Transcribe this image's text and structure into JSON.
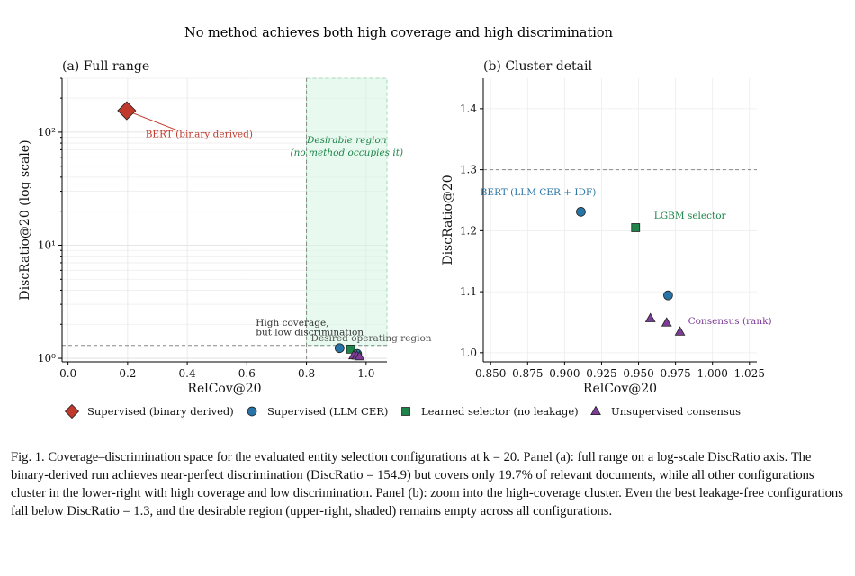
{
  "figure": {
    "suptitle": "No method achieves both high coverage and high discrimination"
  },
  "chart_data": [
    {
      "panel_title": "(a) Full range",
      "type": "scatter",
      "xlabel": "RelCov@20",
      "ylabel": "DiscRatio@20 (log scale)",
      "xlim": [
        -0.02,
        1.07
      ],
      "ylim": [
        0.93,
        300
      ],
      "yscale": "log",
      "xticks": [
        0.0,
        0.2,
        0.4,
        0.6,
        0.8,
        1.0
      ],
      "xtick_labels": [
        "0.0",
        "0.2",
        "0.4",
        "0.6",
        "0.8",
        "1.0"
      ],
      "yticks": [
        1,
        10,
        100
      ],
      "ytick_labels": [
        "10⁰",
        "10¹",
        "10²"
      ],
      "grid": true,
      "desirable_region": {
        "x_from": 0.8,
        "x_to": 1.07,
        "y_from": 1.3,
        "label_line1": "Desirable region",
        "label_line2": "(no method occupies it)",
        "label_x": 0.935,
        "label_y1": 80,
        "label_y2": 62
      },
      "ref_lines": {
        "vline_x": 0.8,
        "hline_y": 1.3
      },
      "series": [
        {
          "name": "Supervised (binary derived)",
          "marker": "diamond",
          "color": "#c0392b",
          "points": [
            {
              "x": 0.197,
              "y": 154.9
            }
          ]
        },
        {
          "name": "Supervised (LLM CER)",
          "marker": "circle",
          "color": "#2874a6",
          "points": [
            {
              "x": 0.911,
              "y": 1.231
            },
            {
              "x": 0.97,
              "y": 1.094
            }
          ]
        },
        {
          "name": "Learned selector (no leakage)",
          "marker": "square",
          "color": "#1e8449",
          "points": [
            {
              "x": 0.948,
              "y": 1.205
            }
          ]
        },
        {
          "name": "Unsupervised consensus",
          "marker": "triangle",
          "color": "#7d3c98",
          "points": [
            {
              "x": 0.958,
              "y": 1.056
            },
            {
              "x": 0.969,
              "y": 1.049
            },
            {
              "x": 0.978,
              "y": 1.034
            }
          ]
        }
      ],
      "annotations": [
        {
          "text": "BERT (binary derived)",
          "x": 0.26,
          "y": 90,
          "color": "#c0392b",
          "arrow_from": [
            0.197,
            154.9
          ],
          "arrow_to": [
            0.37,
            103
          ]
        },
        {
          "text": "High coverage,",
          "x": 0.63,
          "y": 1.93,
          "color": "#333333"
        },
        {
          "text": "but low discrimination",
          "x": 0.63,
          "y": 1.6,
          "color": "#333333"
        },
        {
          "text": "Desired operating region",
          "x": 0.815,
          "y": 1.42,
          "color": "#555555"
        }
      ]
    },
    {
      "panel_title": "(b) Cluster detail",
      "type": "scatter",
      "xlabel": "RelCov@20",
      "ylabel": "DiscRatio@20",
      "xlim": [
        0.845,
        1.03
      ],
      "ylim": [
        0.985,
        1.45
      ],
      "xticks": [
        0.85,
        0.875,
        0.9,
        0.925,
        0.95,
        0.975,
        1.0,
        1.025
      ],
      "xtick_labels": [
        "0.850",
        "0.875",
        "0.900",
        "0.925",
        "0.950",
        "0.975",
        "1.000",
        "1.025"
      ],
      "yticks": [
        1.0,
        1.1,
        1.2,
        1.3,
        1.4
      ],
      "ytick_labels": [
        "1.0",
        "1.1",
        "1.2",
        "1.3",
        "1.4"
      ],
      "grid": true,
      "ref_lines": {
        "hline_y": 1.3
      },
      "series": [
        {
          "name": "Supervised (LLM CER)",
          "marker": "circle",
          "color": "#2874a6",
          "points": [
            {
              "x": 0.911,
              "y": 1.231
            },
            {
              "x": 0.97,
              "y": 1.094
            }
          ]
        },
        {
          "name": "Learned selector (no leakage)",
          "marker": "square",
          "color": "#1e8449",
          "points": [
            {
              "x": 0.948,
              "y": 1.205
            }
          ]
        },
        {
          "name": "Unsupervised consensus",
          "marker": "triangle",
          "color": "#7d3c98",
          "points": [
            {
              "x": 0.958,
              "y": 1.056
            },
            {
              "x": 0.969,
              "y": 1.049
            },
            {
              "x": 0.978,
              "y": 1.034
            }
          ]
        }
      ],
      "annotations": [
        {
          "text": "BERT (LLM CER + IDF)",
          "x": 0.843,
          "y": 1.258,
          "color": "#2874a6"
        },
        {
          "text": "LGBM selector",
          "x": 0.9605,
          "y": 1.22,
          "color": "#1e8449"
        },
        {
          "text": "Consensus (rank)",
          "x": 0.9835,
          "y": 1.047,
          "color": "#7d3c98"
        }
      ]
    }
  ],
  "legend": {
    "placement": "bottom-center",
    "items": [
      {
        "label": "Supervised (binary derived)",
        "marker": "diamond",
        "color": "#c0392b"
      },
      {
        "label": "Supervised (LLM CER)",
        "marker": "circle",
        "color": "#2874a6"
      },
      {
        "label": "Learned selector (no leakage)",
        "marker": "square",
        "color": "#1e8449"
      },
      {
        "label": "Unsupervised consensus",
        "marker": "triangle",
        "color": "#7d3c98"
      }
    ]
  },
  "caption": {
    "text": "Fig. 1.  Coverage–discrimination space for the evaluated entity selection configurations at k = 20. Panel (a): full range on a log-scale DiscRatio axis. The binary-derived run achieves near-perfect discrimination (DiscRatio = 154.9) but covers only 19.7% of relevant documents, while all other configurations cluster in the lower-right with high coverage and low discrimination. Panel (b): zoom into the high-coverage cluster. Even the best leakage-free configurations fall below DiscRatio = 1.3, and the desirable region (upper-right, shaded) remains empty across all configurations."
  }
}
